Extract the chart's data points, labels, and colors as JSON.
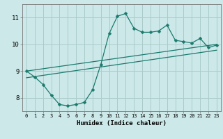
{
  "title": "",
  "xlabel": "Humidex (Indice chaleur)",
  "bg_color": "#cce8e8",
  "grid_color": "#aacccc",
  "line_color": "#1a7a6e",
  "xlim": [
    -0.5,
    23.5
  ],
  "ylim": [
    7.5,
    11.5
  ],
  "xticks": [
    0,
    1,
    2,
    3,
    4,
    5,
    6,
    7,
    8,
    9,
    10,
    11,
    12,
    13,
    14,
    15,
    16,
    17,
    18,
    19,
    20,
    21,
    22,
    23
  ],
  "yticks": [
    8,
    9,
    10,
    11
  ],
  "line1_x": [
    0,
    1,
    2,
    3,
    4,
    5,
    6,
    7,
    8,
    9,
    10,
    11,
    12,
    13,
    14,
    15,
    16,
    17,
    18,
    19,
    20,
    21,
    22,
    23
  ],
  "line1_y": [
    9.0,
    8.78,
    8.5,
    8.1,
    7.75,
    7.7,
    7.75,
    7.83,
    8.3,
    9.25,
    10.4,
    11.05,
    11.15,
    10.6,
    10.45,
    10.45,
    10.5,
    10.72,
    10.15,
    10.1,
    10.05,
    10.22,
    9.88,
    9.97
  ],
  "line2_x": [
    0,
    23
  ],
  "line2_y": [
    9.0,
    10.0
  ],
  "line3_x": [
    0,
    23
  ],
  "line3_y": [
    8.75,
    9.78
  ],
  "marker": "D",
  "markersize": 2.5
}
